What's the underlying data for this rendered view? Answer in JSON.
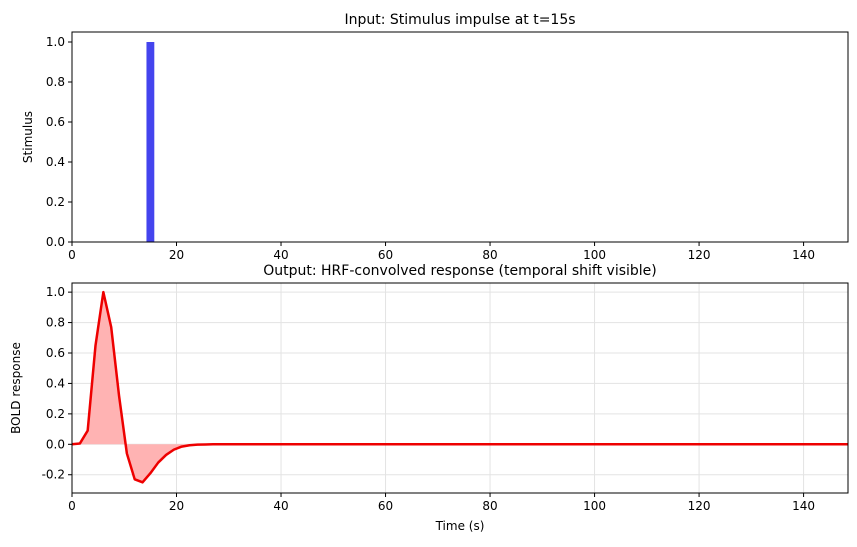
{
  "chart_data": [
    {
      "type": "bar",
      "title": "Input: Stimulus impulse at t=15s",
      "xlabel": "",
      "ylabel": "Stimulus",
      "xlim": [
        0,
        148.5
      ],
      "ylim": [
        0,
        1.05
      ],
      "xticks": [
        0,
        20,
        40,
        60,
        80,
        100,
        120,
        140
      ],
      "yticks": [
        0.0,
        0.2,
        0.4,
        0.6,
        0.8,
        1.0
      ],
      "grid": false,
      "color": "#4444ee",
      "bar_width": 1.5,
      "x": [
        15
      ],
      "values": [
        1.0
      ]
    },
    {
      "type": "area",
      "title": "Output: HRF-convolved response (temporal shift visible)",
      "xlabel": "Time (s)",
      "ylabel": "BOLD response",
      "xlim": [
        0,
        148.5
      ],
      "ylim": [
        -0.32,
        1.06
      ],
      "xticks": [
        0,
        20,
        40,
        60,
        80,
        100,
        120,
        140
      ],
      "yticks": [
        -0.2,
        0.0,
        0.2,
        0.4,
        0.6,
        0.8,
        1.0
      ],
      "grid": true,
      "line_color": "#ee0000",
      "fill_color": "#ffb3b3",
      "x": [
        0,
        1.5,
        3,
        4.5,
        6,
        7.5,
        9,
        10.5,
        12,
        13.5,
        15,
        16.5,
        18,
        19.5,
        21,
        22.5,
        24,
        25.5,
        27,
        30,
        35,
        40,
        60,
        80,
        100,
        120,
        148.5
      ],
      "y": [
        0.0,
        0.005,
        0.09,
        0.65,
        1.0,
        0.77,
        0.32,
        -0.06,
        -0.23,
        -0.25,
        -0.19,
        -0.12,
        -0.07,
        -0.035,
        -0.015,
        -0.006,
        -0.002,
        -0.001,
        0.0,
        0.0,
        0.0,
        0.0,
        0.0,
        0.0,
        0.0,
        0.0,
        0.0
      ]
    }
  ]
}
